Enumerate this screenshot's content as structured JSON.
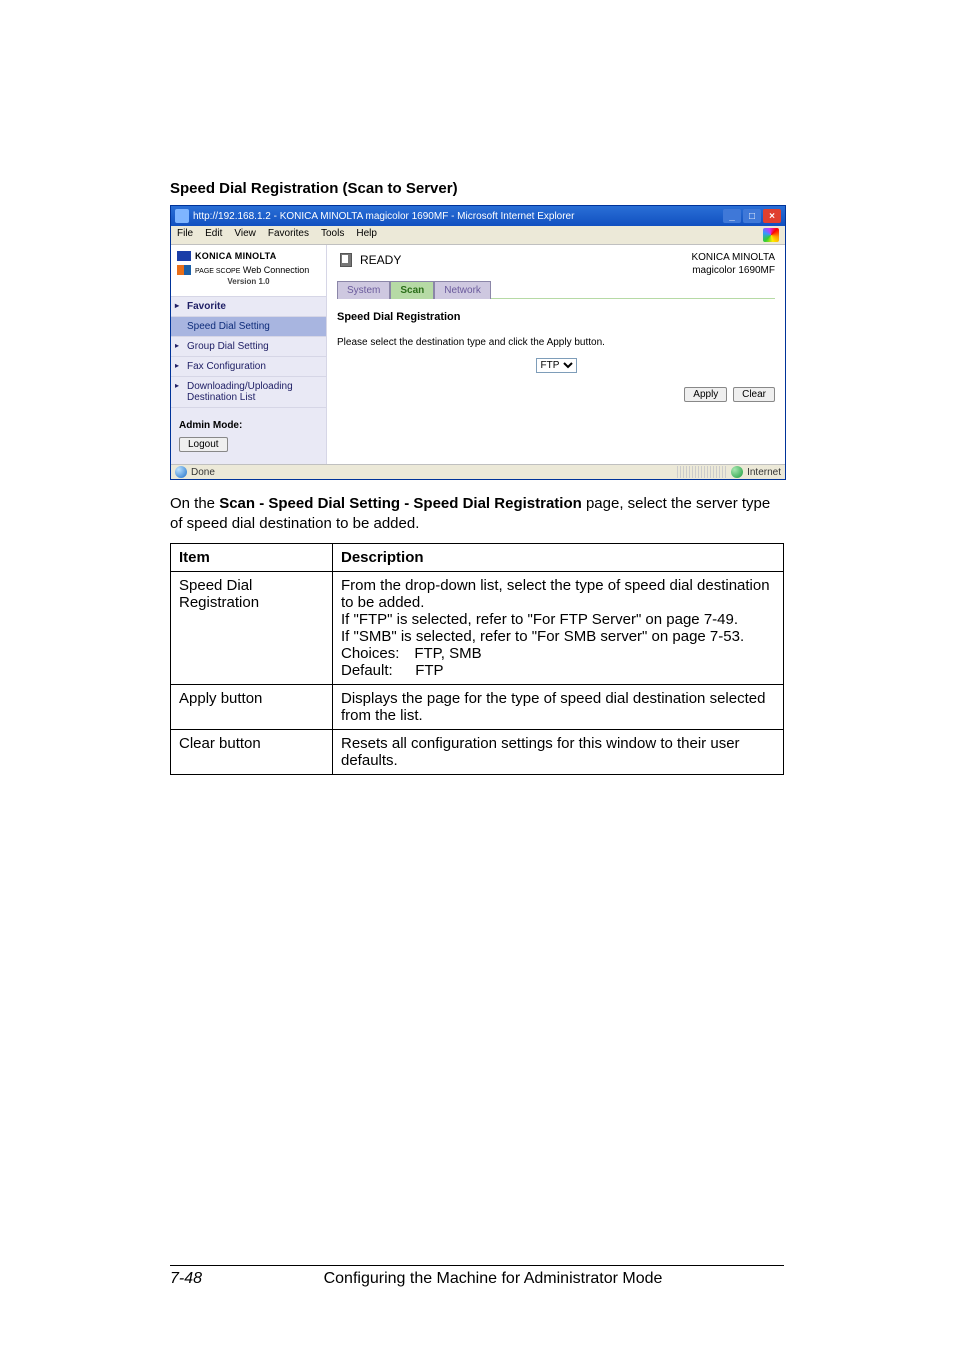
{
  "heading": "Speed Dial Registration (Scan to Server)",
  "window": {
    "title": "http://192.168.1.2 - KONICA MINOLTA magicolor 1690MF - Microsoft Internet Explorer",
    "menus": [
      "File",
      "Edit",
      "View",
      "Favorites",
      "Tools",
      "Help"
    ],
    "brand_main": "KONICA MINOLTA",
    "brand_prefix": "PAGE SCOPE",
    "brand_sub": "Web Connection",
    "version": "Version 1.0",
    "nav": {
      "favorite": "Favorite",
      "speed_dial": "Speed Dial Setting",
      "group_dial": "Group Dial Setting",
      "fax_config": "Fax Configuration",
      "dl_ul": "Downloading/Uploading Destination List"
    },
    "mode_label": "Admin Mode:",
    "logout": "Logout",
    "ready": "READY",
    "model_line1": "KONICA MINOLTA",
    "model_line2": "magicolor 1690MF",
    "tabs": {
      "system": "System",
      "scan": "Scan",
      "network": "Network"
    },
    "panel_title": "Speed Dial Registration",
    "panel_desc": "Please select the destination type and click the Apply button.",
    "select_value": "FTP",
    "apply": "Apply",
    "clear": "Clear",
    "status_done": "Done",
    "status_zone": "Internet"
  },
  "paragraph": {
    "p1a": "On the ",
    "p1b": "Scan - Speed Dial Setting - Speed Dial Registration",
    "p1c": " page, select the server type of speed dial destination to be added."
  },
  "table": {
    "h1": "Item",
    "h2": "Description",
    "r1c1": "Speed Dial Registration",
    "r1c2": "From the drop-down list, select the type of speed dial destination to be added.\nIf \"FTP\" is selected, refer to \"For FTP Server\" on page 7-49.\nIf \"SMB\" is selected, refer to \"For SMB server\" on page 7-53.\nChoices: FTP, SMB\nDefault:  FTP",
    "r2c1": "Apply button",
    "r2c2": "Displays the page for the type of speed dial destination selected from the list.",
    "r3c1": "Clear button",
    "r3c2": "Resets all configuration settings for this window to their user defaults."
  },
  "footer": {
    "page": "7-48",
    "title": "Configuring the Machine for Administrator Mode"
  }
}
